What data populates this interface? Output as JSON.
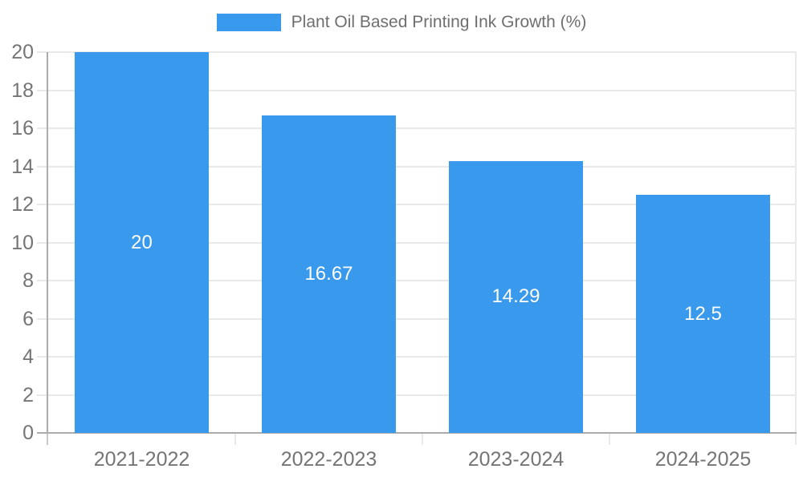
{
  "legend": {
    "label": "Plant Oil Based Printing Ink Growth (%)"
  },
  "colors": {
    "bar": "#3999EC",
    "grid": "#E9E9E9",
    "axis": "#ACACAC",
    "below_axis_tick": "#C9C9C9",
    "tick_label": "#757575",
    "value_label": "#FDFDFD",
    "legend_text": "#6F6F6F",
    "background": "#FFFFFF"
  },
  "chart_data": {
    "type": "bar",
    "title": "Plant Oil Based Printing Ink Growth (%)",
    "categories": [
      "2021-2022",
      "2022-2023",
      "2023-2024",
      "2024-2025"
    ],
    "values": [
      20,
      16.67,
      14.29,
      12.5
    ],
    "value_labels": [
      "20",
      "16.67",
      "14.29",
      "12.5"
    ],
    "xlabel": "",
    "ylabel": "",
    "ylim": [
      0,
      20
    ],
    "ytick_step": 2,
    "yticks": [
      0,
      2,
      4,
      6,
      8,
      10,
      12,
      14,
      16,
      18,
      20
    ],
    "grid": true,
    "legend_position": "top",
    "value_labels_inside": true
  }
}
